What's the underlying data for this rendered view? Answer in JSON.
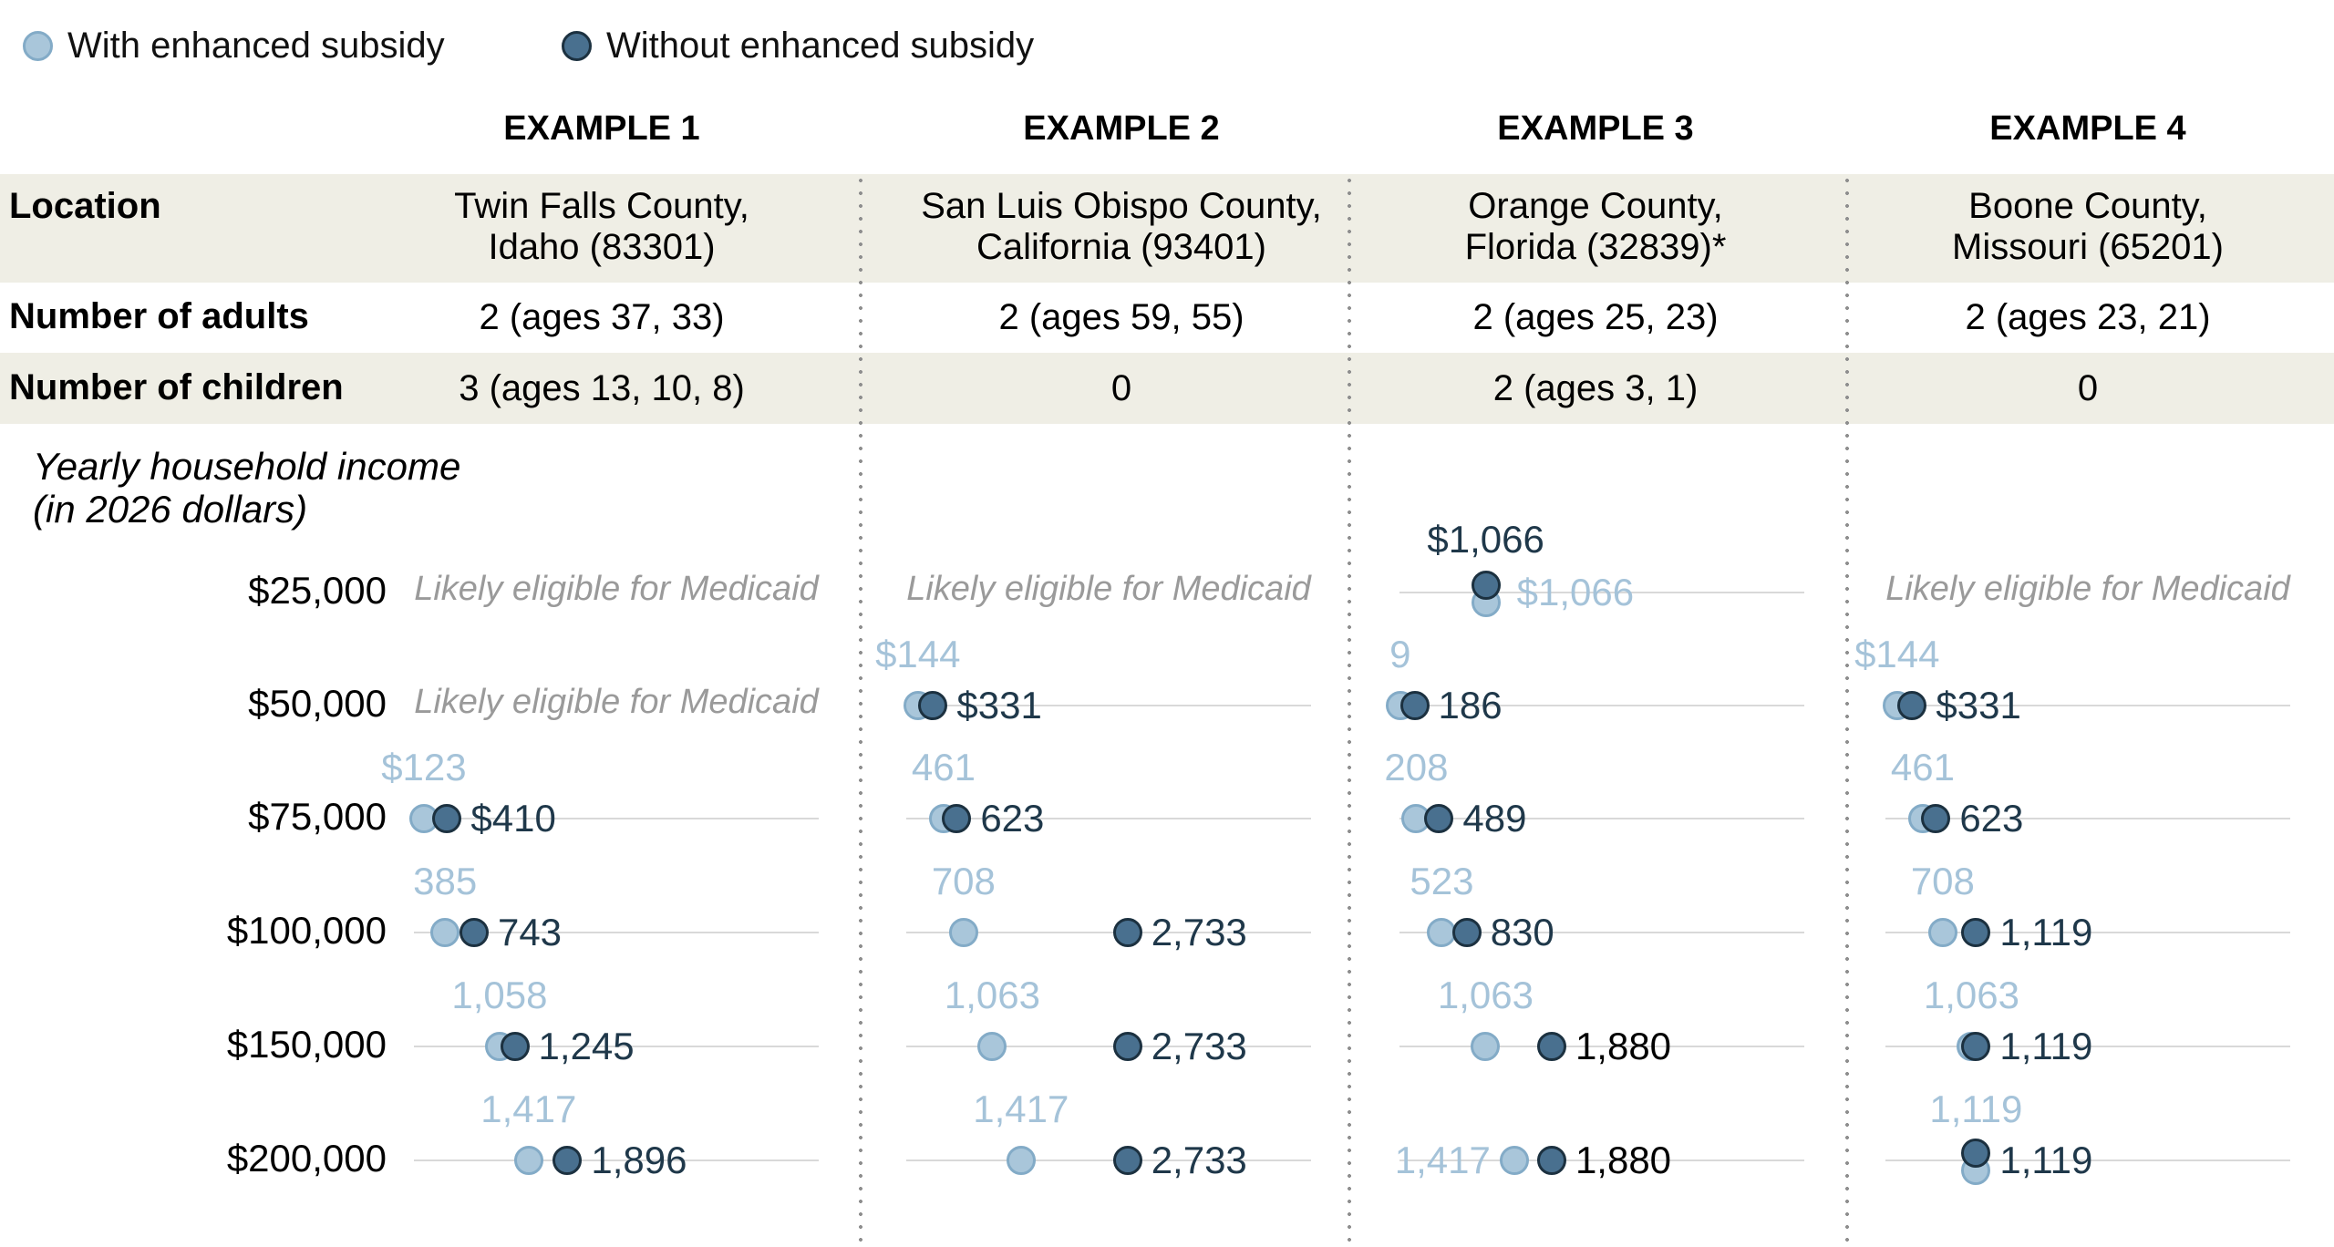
{
  "legend": {
    "with_label": "With enhanced subsidy",
    "without_label": "Without enhanced subsidy"
  },
  "colors": {
    "with_fill": "#a9c6da",
    "with_stroke": "#83abc7",
    "without_fill": "#49708f",
    "without_stroke": "#1c3140",
    "light_text": "#a5c3d9",
    "dark_text": "#1f384a",
    "black_text": "#000000",
    "note_gray": "#9a9a9a",
    "axis_line": "#d9d9d9",
    "row_band": "#efeee5",
    "divider": "#8f8f8f"
  },
  "table": {
    "row_labels": [
      "Location",
      "Number of adults",
      "Number of children"
    ],
    "income_title_line1": "Yearly household income",
    "income_title_line2": "(in 2026 dollars)"
  },
  "examples": [
    {
      "header": "EXAMPLE 1",
      "location_line1": "Twin Falls County,",
      "location_line2": "Idaho (83301)",
      "adults": "2 (ages 37, 33)",
      "children": "3 (ages 13, 10, 8)"
    },
    {
      "header": "EXAMPLE 2",
      "location_line1": "San Luis Obispo County,",
      "location_line2": "California (93401)",
      "adults": "2 (ages 59, 55)",
      "children": "0"
    },
    {
      "header": "EXAMPLE 3",
      "location_line1": "Orange County,",
      "location_line2": "Florida (32839)*",
      "adults": "2 (ages 25, 23)",
      "children": "2 (ages 3, 1)"
    },
    {
      "header": "EXAMPLE 4",
      "location_line1": "Boone County,",
      "location_line2": "Missouri (65201)",
      "adults": "2 (ages 23, 21)",
      "children": "0"
    }
  ],
  "chart_data": {
    "type": "scatter",
    "subtype": "dot-plot (monthly premium by yearly household income)",
    "series_names": [
      "With enhanced subsidy",
      "Without enhanced subsidy"
    ],
    "incomes": [
      "$25,000",
      "$50,000",
      "$75,000",
      "$100,000",
      "$150,000",
      "$200,000"
    ],
    "medicaid_note": "Likely eligible for Medicaid",
    "axis_max": 5000,
    "grid": "single horizontal reference line per row",
    "columns": [
      {
        "example": "EXAMPLE 1",
        "rows": [
          {
            "income": "$25,000",
            "note": true
          },
          {
            "income": "$50,000",
            "note": true
          },
          {
            "income": "$75,000",
            "with": 123,
            "without": 410,
            "with_label": "$123",
            "without_label": "$410"
          },
          {
            "income": "$100,000",
            "with": 385,
            "without": 743,
            "with_label": "385",
            "without_label": "743"
          },
          {
            "income": "$150,000",
            "with": 1058,
            "without": 1245,
            "with_label": "1,058",
            "without_label": "1,245"
          },
          {
            "income": "$200,000",
            "with": 1417,
            "without": 1896,
            "with_label": "1,417",
            "without_label": "1,896"
          }
        ]
      },
      {
        "example": "EXAMPLE 2",
        "rows": [
          {
            "income": "$25,000",
            "note": true
          },
          {
            "income": "$50,000",
            "with": 144,
            "without": 331,
            "with_label": "$144",
            "without_label": "$331"
          },
          {
            "income": "$75,000",
            "with": 461,
            "without": 623,
            "with_label": "461",
            "without_label": "623"
          },
          {
            "income": "$100,000",
            "with": 708,
            "without": 2733,
            "with_label": "708",
            "without_label": "2,733"
          },
          {
            "income": "$150,000",
            "with": 1063,
            "without": 2733,
            "with_label": "1,063",
            "without_label": "2,733"
          },
          {
            "income": "$200,000",
            "with": 1417,
            "without": 2733,
            "with_label": "1,417",
            "without_label": "2,733"
          }
        ]
      },
      {
        "example": "EXAMPLE 3",
        "rows": [
          {
            "income": "$25,000",
            "with": 1066,
            "without": 1066,
            "with_label": "$1,066",
            "without_label": "$1,066",
            "stacked": true,
            "with_label_pos": "right",
            "without_label_pos": "above"
          },
          {
            "income": "$50,000",
            "with": 9,
            "without": 186,
            "with_label": "9",
            "without_label": "186"
          },
          {
            "income": "$75,000",
            "with": 208,
            "without": 489,
            "with_label": "208",
            "without_label": "489"
          },
          {
            "income": "$100,000",
            "with": 523,
            "without": 830,
            "with_label": "523",
            "without_label": "830"
          },
          {
            "income": "$150,000",
            "with": 1063,
            "without": 1880,
            "with_label": "1,063",
            "without_label": "1,880",
            "without_label_color": "black"
          },
          {
            "income": "$200,000",
            "with": 1417,
            "without": 1880,
            "with_label": "1,417",
            "without_label": "1,880",
            "with_label_pos": "left",
            "without_label_color": "black"
          }
        ]
      },
      {
        "example": "EXAMPLE 4",
        "rows": [
          {
            "income": "$25,000",
            "note": true
          },
          {
            "income": "$50,000",
            "with": 144,
            "without": 331,
            "with_label": "$144",
            "without_label": "$331"
          },
          {
            "income": "$75,000",
            "with": 461,
            "without": 623,
            "with_label": "461",
            "without_label": "623"
          },
          {
            "income": "$100,000",
            "with": 708,
            "without": 1119,
            "with_label": "708",
            "without_label": "1,119"
          },
          {
            "income": "$150,000",
            "with": 1063,
            "without": 1119,
            "with_label": "1,063",
            "without_label": "1,119"
          },
          {
            "income": "$200,000",
            "with": 1119,
            "without": 1119,
            "with_label": "1,119",
            "without_label": "1,119",
            "stacked": true
          }
        ]
      }
    ]
  }
}
